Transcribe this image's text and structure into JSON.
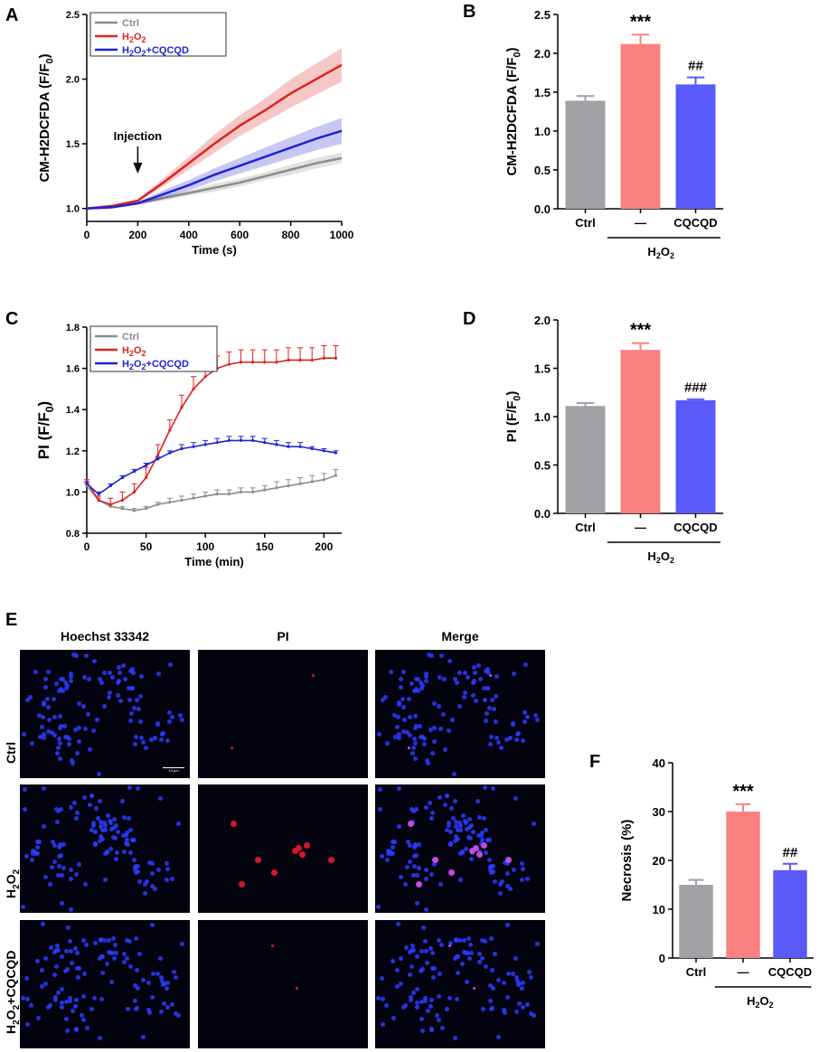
{
  "chart_data": [
    {
      "id": "A",
      "panel_label": "A",
      "type": "line",
      "ylabel": "CM-H2DCFDA (F/F0)",
      "ylabel_main": "CM-H2DCFDA (F/F",
      "ylabel_sub": "0",
      "ylabel_close": ")",
      "xlabel": "Time (s)",
      "xlim": [
        0,
        1000
      ],
      "ylim": [
        0.9,
        2.5
      ],
      "x_ticks": [
        0,
        200,
        400,
        600,
        800,
        1000
      ],
      "y_ticks": [
        1.0,
        1.5,
        2.0,
        2.5
      ],
      "y_tick_labels": [
        "1.0",
        "1.5",
        "2.0",
        "2.5"
      ],
      "annotation": "Injection",
      "annotation_x": 200,
      "legend": [
        "Ctrl",
        "H2O2",
        "H2O2+CQCQD"
      ],
      "series": [
        {
          "name": "Ctrl",
          "color": "#8c8c8c",
          "x": [
            0,
            100,
            200,
            300,
            400,
            500,
            600,
            700,
            800,
            900,
            1000
          ],
          "y": [
            1.0,
            1.01,
            1.04,
            1.08,
            1.12,
            1.16,
            1.2,
            1.25,
            1.3,
            1.35,
            1.39
          ],
          "err": [
            0.01,
            0.01,
            0.01,
            0.02,
            0.02,
            0.03,
            0.03,
            0.03,
            0.04,
            0.04,
            0.04
          ]
        },
        {
          "name": "H2O2",
          "color": "#e02020",
          "x": [
            0,
            100,
            200,
            300,
            400,
            500,
            600,
            700,
            800,
            900,
            1000
          ],
          "y": [
            1.0,
            1.02,
            1.06,
            1.2,
            1.35,
            1.5,
            1.64,
            1.76,
            1.89,
            2.0,
            2.11
          ],
          "err": [
            0.01,
            0.01,
            0.01,
            0.03,
            0.05,
            0.07,
            0.08,
            0.09,
            0.11,
            0.12,
            0.13
          ]
        },
        {
          "name": "H2O2+CQCQD",
          "color": "#1f23d4",
          "x": [
            0,
            100,
            200,
            300,
            400,
            500,
            600,
            700,
            800,
            900,
            1000
          ],
          "y": [
            1.0,
            1.01,
            1.04,
            1.11,
            1.18,
            1.26,
            1.33,
            1.4,
            1.47,
            1.54,
            1.6
          ],
          "err": [
            0.01,
            0.01,
            0.01,
            0.03,
            0.04,
            0.05,
            0.06,
            0.07,
            0.08,
            0.09,
            0.1
          ]
        }
      ]
    },
    {
      "id": "B",
      "panel_label": "B",
      "type": "bar",
      "ylabel": "CM-H2DCFDA (F/F0)",
      "ylabel_main": "CM-H2DCFDA (F/F",
      "ylabel_sub": "0",
      "ylabel_close": ")",
      "ylim": [
        0.0,
        2.5
      ],
      "y_ticks": [
        0.0,
        0.5,
        1.0,
        1.5,
        2.0,
        2.5
      ],
      "y_tick_labels": [
        "0.0",
        "0.5",
        "1.0",
        "1.5",
        "2.0",
        "2.5"
      ],
      "categories": [
        "Ctrl",
        "—",
        "CQCQD"
      ],
      "values": [
        1.39,
        2.12,
        1.6
      ],
      "errors": [
        0.06,
        0.12,
        0.09
      ],
      "colors": [
        "#a1a1a6",
        "#fb8080",
        "#5a5af8"
      ],
      "significance": [
        "",
        "***",
        "##"
      ],
      "group_label": "H2O2"
    },
    {
      "id": "C",
      "panel_label": "C",
      "type": "line",
      "ylabel": "PI (F/F0)",
      "ylabel_main": "PI (F/F",
      "ylabel_sub": "0",
      "ylabel_close": ")",
      "xlabel": "Time (min)",
      "xlim": [
        0,
        215
      ],
      "ylim": [
        0.8,
        1.8
      ],
      "x_ticks": [
        0,
        50,
        100,
        150,
        200
      ],
      "y_ticks": [
        0.8,
        1.0,
        1.2,
        1.4,
        1.6,
        1.8
      ],
      "y_tick_labels": [
        "0.8",
        "1.0",
        "1.2",
        "1.4",
        "1.6",
        "1.8"
      ],
      "legend": [
        "Ctrl",
        "H2O2",
        "H2O2+CQCQD"
      ],
      "series": [
        {
          "name": "Ctrl",
          "color": "#8c8c8c",
          "x": [
            0,
            10,
            20,
            30,
            40,
            50,
            60,
            70,
            80,
            90,
            100,
            110,
            120,
            130,
            140,
            150,
            160,
            170,
            180,
            190,
            200,
            210
          ],
          "y": [
            1.03,
            0.96,
            0.93,
            0.92,
            0.91,
            0.92,
            0.94,
            0.95,
            0.96,
            0.97,
            0.98,
            0.99,
            0.99,
            1.0,
            1.0,
            1.01,
            1.02,
            1.03,
            1.04,
            1.05,
            1.06,
            1.08
          ],
          "err": [
            0.01,
            0.01,
            0.01,
            0.01,
            0.01,
            0.01,
            0.01,
            0.02,
            0.02,
            0.02,
            0.02,
            0.02,
            0.02,
            0.02,
            0.02,
            0.02,
            0.03,
            0.03,
            0.03,
            0.03,
            0.03,
            0.03
          ]
        },
        {
          "name": "H2O2",
          "color": "#e02020",
          "x": [
            0,
            10,
            20,
            30,
            40,
            50,
            60,
            70,
            80,
            90,
            100,
            110,
            120,
            130,
            140,
            150,
            160,
            170,
            180,
            190,
            200,
            210
          ],
          "y": [
            1.05,
            0.96,
            0.94,
            0.96,
            1.0,
            1.07,
            1.18,
            1.3,
            1.41,
            1.5,
            1.56,
            1.6,
            1.62,
            1.63,
            1.63,
            1.63,
            1.63,
            1.64,
            1.64,
            1.64,
            1.65,
            1.65
          ],
          "err": [
            0.01,
            0.02,
            0.03,
            0.04,
            0.04,
            0.05,
            0.05,
            0.05,
            0.06,
            0.06,
            0.06,
            0.06,
            0.06,
            0.06,
            0.06,
            0.06,
            0.06,
            0.06,
            0.06,
            0.06,
            0.06,
            0.06
          ]
        },
        {
          "name": "H2O2+CQCQD",
          "color": "#1f23d4",
          "x": [
            0,
            10,
            20,
            30,
            40,
            50,
            60,
            70,
            80,
            90,
            100,
            110,
            120,
            130,
            140,
            150,
            160,
            170,
            180,
            190,
            200,
            210
          ],
          "y": [
            1.04,
            0.99,
            1.03,
            1.07,
            1.1,
            1.13,
            1.16,
            1.19,
            1.21,
            1.22,
            1.23,
            1.24,
            1.25,
            1.25,
            1.25,
            1.24,
            1.23,
            1.22,
            1.22,
            1.21,
            1.2,
            1.19
          ],
          "err": [
            0.01,
            0.01,
            0.01,
            0.01,
            0.01,
            0.01,
            0.01,
            0.01,
            0.02,
            0.02,
            0.02,
            0.02,
            0.02,
            0.02,
            0.02,
            0.02,
            0.02,
            0.02,
            0.02,
            0.01,
            0.01,
            0.01
          ]
        }
      ]
    },
    {
      "id": "D",
      "panel_label": "D",
      "type": "bar",
      "ylabel": "PI (F/F0)",
      "ylabel_main": "PI (F/F",
      "ylabel_sub": "0",
      "ylabel_close": ")",
      "ylim": [
        0.0,
        2.0
      ],
      "y_ticks": [
        0.0,
        0.5,
        1.0,
        1.5,
        2.0
      ],
      "y_tick_labels": [
        "0.0",
        "0.5",
        "1.0",
        "1.5",
        "2.0"
      ],
      "categories": [
        "Ctrl",
        "—",
        "CQCQD"
      ],
      "values": [
        1.11,
        1.69,
        1.17
      ],
      "errors": [
        0.03,
        0.07,
        0.01
      ],
      "colors": [
        "#a1a1a6",
        "#fb8080",
        "#5a5af8"
      ],
      "significance": [
        "",
        "***",
        "###"
      ],
      "group_label": "H2O2"
    },
    {
      "id": "F",
      "panel_label": "F",
      "type": "bar",
      "ylabel": "Necrosis (%)",
      "ylabel_main": "Necrosis (%)",
      "ylabel_sub": "",
      "ylabel_close": "",
      "ylim": [
        0,
        40
      ],
      "y_ticks": [
        0,
        10,
        20,
        30,
        40
      ],
      "y_tick_labels": [
        "0",
        "10",
        "20",
        "30",
        "40"
      ],
      "categories": [
        "Ctrl",
        "—",
        "CQCQD"
      ],
      "values": [
        15.0,
        30.0,
        18.0
      ],
      "errors": [
        1.0,
        1.5,
        1.3
      ],
      "colors": [
        "#a1a1a6",
        "#fb8080",
        "#5a5af8"
      ],
      "significance": [
        "",
        "***",
        "##"
      ],
      "group_label": "H2O2"
    }
  ],
  "microscopy": {
    "panel_label": "E",
    "columns": [
      "Hoechst 33342",
      "PI",
      "Merge"
    ],
    "rows": [
      {
        "label": "Ctrl",
        "parts": [
          "Ctrl"
        ]
      },
      {
        "label": "H2O2",
        "parts": [
          "H",
          "2",
          "O",
          "2",
          ""
        ]
      },
      {
        "label": "H2O2+CQCQD",
        "parts": [
          "H",
          "2",
          "O",
          "2",
          "+CQCQD"
        ]
      }
    ],
    "scale_bar": "10 μm",
    "colors": {
      "nuclei": "#2b3cff",
      "pi": "#d4182a",
      "merge": "#c24adf"
    }
  }
}
